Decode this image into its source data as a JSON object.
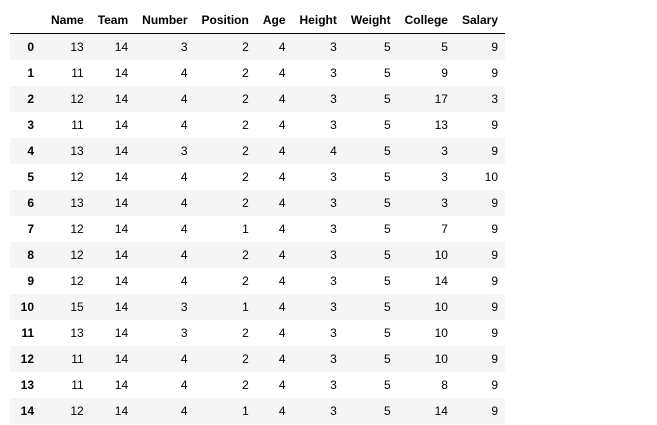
{
  "table": {
    "index_header": "",
    "columns": [
      "Name",
      "Team",
      "Number",
      "Position",
      "Age",
      "Height",
      "Weight",
      "College",
      "Salary"
    ],
    "rows": [
      {
        "index": "0",
        "values": [
          "13",
          "14",
          "3",
          "2",
          "4",
          "3",
          "5",
          "5",
          "9"
        ]
      },
      {
        "index": "1",
        "values": [
          "11",
          "14",
          "4",
          "2",
          "4",
          "3",
          "5",
          "9",
          "9"
        ]
      },
      {
        "index": "2",
        "values": [
          "12",
          "14",
          "4",
          "2",
          "4",
          "3",
          "5",
          "17",
          "3"
        ]
      },
      {
        "index": "3",
        "values": [
          "11",
          "14",
          "4",
          "2",
          "4",
          "3",
          "5",
          "13",
          "9"
        ]
      },
      {
        "index": "4",
        "values": [
          "13",
          "14",
          "3",
          "2",
          "4",
          "4",
          "5",
          "3",
          "9"
        ]
      },
      {
        "index": "5",
        "values": [
          "12",
          "14",
          "4",
          "2",
          "4",
          "3",
          "5",
          "3",
          "10"
        ]
      },
      {
        "index": "6",
        "values": [
          "13",
          "14",
          "4",
          "2",
          "4",
          "3",
          "5",
          "3",
          "9"
        ]
      },
      {
        "index": "7",
        "values": [
          "12",
          "14",
          "4",
          "1",
          "4",
          "3",
          "5",
          "7",
          "9"
        ]
      },
      {
        "index": "8",
        "values": [
          "12",
          "14",
          "4",
          "2",
          "4",
          "3",
          "5",
          "10",
          "9"
        ]
      },
      {
        "index": "9",
        "values": [
          "12",
          "14",
          "4",
          "2",
          "4",
          "3",
          "5",
          "14",
          "9"
        ]
      },
      {
        "index": "10",
        "values": [
          "15",
          "14",
          "3",
          "1",
          "4",
          "3",
          "5",
          "10",
          "9"
        ]
      },
      {
        "index": "11",
        "values": [
          "13",
          "14",
          "3",
          "2",
          "4",
          "3",
          "5",
          "10",
          "9"
        ]
      },
      {
        "index": "12",
        "values": [
          "11",
          "14",
          "4",
          "2",
          "4",
          "3",
          "5",
          "10",
          "9"
        ]
      },
      {
        "index": "13",
        "values": [
          "11",
          "14",
          "4",
          "2",
          "4",
          "3",
          "5",
          "8",
          "9"
        ]
      },
      {
        "index": "14",
        "values": [
          "12",
          "14",
          "4",
          "1",
          "4",
          "3",
          "5",
          "14",
          "9"
        ]
      }
    ]
  },
  "colors": {
    "stripe": "#f5f5f5",
    "header_rule": "#000000",
    "text": "#000000"
  }
}
